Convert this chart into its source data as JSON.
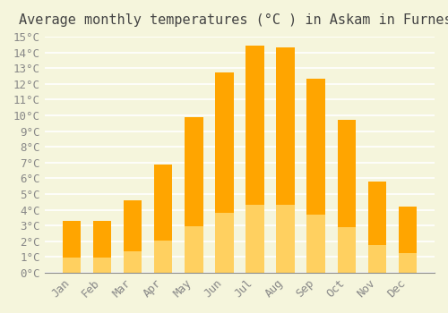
{
  "title": "Average monthly temperatures (°C ) in Askam in Furness",
  "months": [
    "Jan",
    "Feb",
    "Mar",
    "Apr",
    "May",
    "Jun",
    "Jul",
    "Aug",
    "Sep",
    "Oct",
    "Nov",
    "Dec"
  ],
  "values": [
    3.3,
    3.3,
    4.6,
    6.9,
    9.9,
    12.7,
    14.4,
    14.3,
    12.3,
    9.7,
    5.8,
    4.2
  ],
  "bar_color_top": "#FFA500",
  "bar_color_bottom": "#FFD060",
  "background_color": "#F5F5DC",
  "grid_color": "#FFFFFF",
  "text_color": "#888888",
  "title_color": "#444444",
  "ylim": [
    0,
    15
  ],
  "ytick_step": 1,
  "title_fontsize": 11,
  "tick_fontsize": 9,
  "font_family": "monospace"
}
